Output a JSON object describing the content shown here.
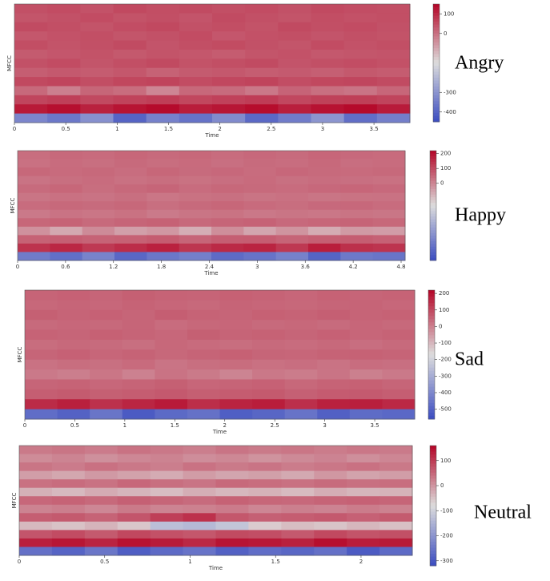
{
  "chart_data": [
    {
      "type": "heatmap",
      "label": "Angry",
      "xlabel": "Time",
      "ylabel": "MFCC",
      "xlim": [
        0,
        3.85
      ],
      "xticks": [
        0,
        0.5,
        1,
        1.5,
        2,
        2.5,
        3,
        3.5
      ],
      "clim": [
        -450,
        150
      ],
      "cticks": [
        100,
        0,
        -300,
        -400
      ],
      "z": [
        [
          45,
          50,
          42,
          55,
          48,
          52,
          46,
          50,
          44,
          53,
          49,
          47
        ],
        [
          38,
          44,
          50,
          41,
          47,
          39,
          52,
          45,
          40,
          48,
          43,
          46
        ],
        [
          52,
          46,
          40,
          49,
          55,
          44,
          48,
          41,
          53,
          46,
          50,
          44
        ],
        [
          35,
          42,
          47,
          38,
          44,
          50,
          36,
          43,
          47,
          39,
          45,
          41
        ],
        [
          48,
          40,
          45,
          52,
          39,
          46,
          51,
          44,
          38,
          50,
          42,
          47
        ],
        [
          30,
          36,
          41,
          33,
          40,
          35,
          28,
          38,
          42,
          34,
          37,
          39
        ],
        [
          44,
          50,
          38,
          46,
          53,
          41,
          47,
          52,
          39,
          45,
          49,
          43
        ],
        [
          25,
          32,
          28,
          35,
          20,
          30,
          34,
          27,
          31,
          24,
          33,
          29
        ],
        [
          55,
          60,
          48,
          58,
          62,
          50,
          57,
          61,
          49,
          56,
          59,
          52
        ],
        [
          10,
          -20,
          15,
          5,
          -30,
          12,
          8,
          -10,
          18,
          2,
          -5,
          14
        ],
        [
          60,
          68,
          55,
          63,
          70,
          58,
          65,
          72,
          57,
          66,
          69,
          61
        ],
        [
          120,
          135,
          110,
          128,
          140,
          115,
          125,
          138,
          112,
          130,
          142,
          118
        ],
        [
          -330,
          -360,
          -310,
          -400,
          -340,
          -370,
          -320,
          -390,
          -350,
          -300,
          -380,
          -345
        ]
      ]
    },
    {
      "type": "heatmap",
      "label": "Happy",
      "xlabel": "Time",
      "ylabel": "MFCC",
      "xlim": [
        0,
        4.85
      ],
      "xticks": [
        0,
        0.6,
        1.2,
        1.8,
        2.4,
        3,
        3.6,
        4.2,
        4.8
      ],
      "clim": [
        -520,
        220
      ],
      "cticks": [
        200,
        100,
        0
      ],
      "z": [
        [
          40,
          48,
          44,
          52,
          46,
          50,
          42,
          49,
          45,
          53,
          47,
          44
        ],
        [
          35,
          42,
          38,
          46,
          40,
          44,
          37,
          45,
          41,
          48,
          39,
          43
        ],
        [
          50,
          44,
          48,
          41,
          52,
          45,
          49,
          43,
          51,
          46,
          44,
          48
        ],
        [
          30,
          38,
          42,
          35,
          40,
          33,
          39,
          44,
          36,
          41,
          37,
          34
        ],
        [
          45,
          52,
          40,
          48,
          55,
          43,
          50,
          46,
          42,
          49,
          53,
          47
        ],
        [
          28,
          35,
          30,
          38,
          25,
          33,
          36,
          29,
          34,
          27,
          31,
          32
        ],
        [
          42,
          48,
          45,
          50,
          38,
          46,
          52,
          44,
          40,
          47,
          49,
          43
        ],
        [
          20,
          30,
          25,
          33,
          18,
          28,
          31,
          22,
          27,
          24,
          29,
          26
        ],
        [
          52,
          58,
          46,
          55,
          60,
          48,
          54,
          59,
          47,
          53,
          57,
          50
        ],
        [
          -20,
          -60,
          -10,
          -45,
          -30,
          -70,
          -15,
          -55,
          -25,
          -65,
          -35,
          -40
        ],
        [
          60,
          65,
          58,
          62,
          70,
          55,
          66,
          68,
          57,
          64,
          69,
          61
        ],
        [
          140,
          160,
          130,
          150,
          170,
          135,
          155,
          165,
          132,
          175,
          145,
          138
        ],
        [
          -400,
          -430,
          -380,
          -450,
          -410,
          -390,
          -440,
          -420,
          -385,
          -460,
          -405,
          -415
        ]
      ]
    },
    {
      "type": "heatmap",
      "label": "Sad",
      "xlabel": "Time",
      "ylabel": "MFCC",
      "xlim": [
        0,
        3.9
      ],
      "xticks": [
        0,
        0.5,
        1,
        1.5,
        2,
        2.5,
        3,
        3.5
      ],
      "clim": [
        -560,
        220
      ],
      "cticks": [
        200,
        100,
        0,
        -100,
        -200,
        -300,
        -400,
        -500
      ],
      "z": [
        [
          48,
          52,
          45,
          55,
          50,
          47,
          53,
          49,
          44,
          51,
          46,
          50
        ],
        [
          40,
          46,
          42,
          49,
          44,
          38,
          47,
          43,
          41,
          45,
          48,
          42
        ],
        [
          55,
          48,
          52,
          46,
          58,
          50,
          45,
          53,
          49,
          56,
          47,
          51
        ],
        [
          36,
          42,
          39,
          45,
          33,
          41,
          44,
          37,
          40,
          35,
          43,
          38
        ],
        [
          50,
          45,
          53,
          48,
          42,
          55,
          47,
          51,
          46,
          52,
          44,
          49
        ],
        [
          32,
          38,
          35,
          28,
          40,
          34,
          30,
          37,
          33,
          39,
          29,
          36
        ],
        [
          46,
          52,
          44,
          50,
          41,
          48,
          53,
          45,
          43,
          49,
          51,
          47
        ],
        [
          22,
          30,
          26,
          34,
          18,
          28,
          32,
          24,
          29,
          20,
          31,
          27
        ],
        [
          10,
          0,
          15,
          -5,
          20,
          8,
          -10,
          12,
          5,
          18,
          -2,
          9
        ],
        [
          45,
          50,
          42,
          48,
          55,
          44,
          47,
          52,
          40,
          49,
          53,
          46
        ],
        [
          58,
          64,
          55,
          60,
          67,
          57,
          62,
          66,
          54,
          63,
          65,
          59
        ],
        [
          150,
          170,
          140,
          160,
          180,
          145,
          165,
          175,
          142,
          168,
          172,
          155
        ],
        [
          -470,
          -500,
          -450,
          -520,
          -480,
          -460,
          -510,
          -490,
          -455,
          -505,
          -475,
          -485
        ]
      ]
    },
    {
      "type": "heatmap",
      "label": "Neutral",
      "xlabel": "Time",
      "ylabel": "MFCC",
      "xlim": [
        0,
        2.3
      ],
      "xticks": [
        0,
        0.5,
        1,
        1.5,
        2
      ],
      "clim": [
        -320,
        160
      ],
      "cticks": [
        100,
        0,
        -100,
        -200,
        -300
      ],
      "z": [
        [
          30,
          35,
          28,
          38,
          32,
          25,
          36,
          30,
          34,
          27,
          33,
          29
        ],
        [
          10,
          18,
          5,
          15,
          20,
          8,
          14,
          2,
          12,
          19,
          6,
          16
        ],
        [
          35,
          28,
          40,
          32,
          25,
          38,
          30,
          36,
          27,
          33,
          39,
          31
        ],
        [
          -10,
          -20,
          -5,
          -15,
          -25,
          -8,
          -18,
          -12,
          -22,
          -3,
          -16,
          -9
        ],
        [
          40,
          45,
          38,
          50,
          42,
          36,
          48,
          44,
          39,
          46,
          41,
          43
        ],
        [
          -30,
          -40,
          -25,
          -35,
          -45,
          -28,
          -38,
          -32,
          -42,
          -27,
          -36,
          -33
        ],
        [
          50,
          55,
          48,
          58,
          52,
          46,
          56,
          51,
          49,
          54,
          57,
          53
        ],
        [
          20,
          25,
          15,
          30,
          18,
          22,
          28,
          16,
          24,
          19,
          27,
          21
        ],
        [
          60,
          65,
          55,
          70,
          95,
          110,
          68,
          58,
          62,
          66,
          57,
          64
        ],
        [
          -40,
          -50,
          -35,
          -55,
          -130,
          -140,
          -120,
          -60,
          -45,
          -52,
          -38,
          -48
        ],
        [
          70,
          80,
          65,
          85,
          75,
          68,
          82,
          78,
          66,
          84,
          72,
          76
        ],
        [
          130,
          140,
          125,
          145,
          135,
          120,
          142,
          138,
          128,
          148,
          132,
          136
        ],
        [
          -260,
          -280,
          -250,
          -290,
          -270,
          -255,
          -285,
          -265,
          -275,
          -260,
          -295,
          -270
        ]
      ]
    }
  ]
}
